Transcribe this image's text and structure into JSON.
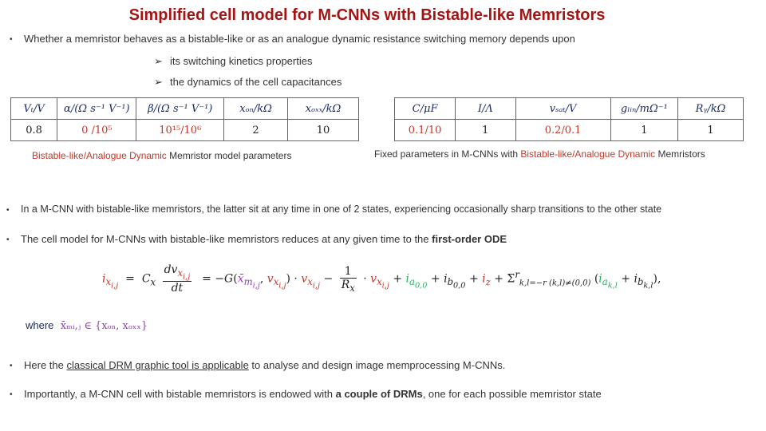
{
  "title": "Simplified cell model for M-CNNs with Bistable-like Memristors",
  "bullet1": "Whether a memristor behaves as a bistable-like or as an analogue dynamic resistance switching memory depends upon",
  "sub1": "its switching kinetics properties",
  "sub2": "the dynamics of the cell capacitances",
  "table1": {
    "headers": [
      "Vₜ/V",
      "α/(Ω s⁻¹ V⁻¹)",
      "β/(Ω s⁻¹ V⁻¹)",
      "xₒₙ/kΩ",
      "xₒₓₓ/kΩ"
    ],
    "values": [
      "0.8",
      "0 /10⁵",
      "10¹⁵/10⁶",
      "2",
      "10"
    ],
    "caption_left": "Bistable-like/Analogue Dynamic",
    "caption_right": " Memristor model parameters"
  },
  "table2": {
    "headers": [
      "C/μF",
      "I/Λ",
      "vₛₐₜ/V",
      "gₗᵢₙ/mΩ⁻¹",
      "Rᵧ/kΩ"
    ],
    "values": [
      "0.1/10",
      "1",
      "0.2/0.1",
      "1",
      "1"
    ],
    "caption_left": "Fixed parameters in M-CNNs with ",
    "caption_mid": "Bistable-like/Analogue Dynamic",
    "caption_right": " Memristors"
  },
  "bullet2": "In a M-CNN with bistable-like memristors, the latter sit at any time in one of 2 states, experiencing occasionally sharp transitions to the other state",
  "bullet3_pre": "The cell model for M-CNNs with bistable-like memristors reduces at any given time to the ",
  "bullet3_bold": "first-order ODE",
  "where_label": "where",
  "where_expr": "x̄ₘᵢ,ⱼ ∈ {xₒₙ, xₒₓₓ}",
  "bullet4_pre": "Here the ",
  "bullet4_u": "classical DRM graphic tool is applicable",
  "bullet4_post": " to analyse and design image memprocessing M-CNNs.",
  "bullet5_pre": "Importantly, a M-CNN cell with bistable memristors is endowed with ",
  "bullet5_bold": "a couple of DRMs",
  "bullet5_post": ", one for each possible memristor state",
  "colors": {
    "title": "#a31515",
    "accent_red": "#c0392b",
    "header_blue": "#1a2b6b"
  }
}
